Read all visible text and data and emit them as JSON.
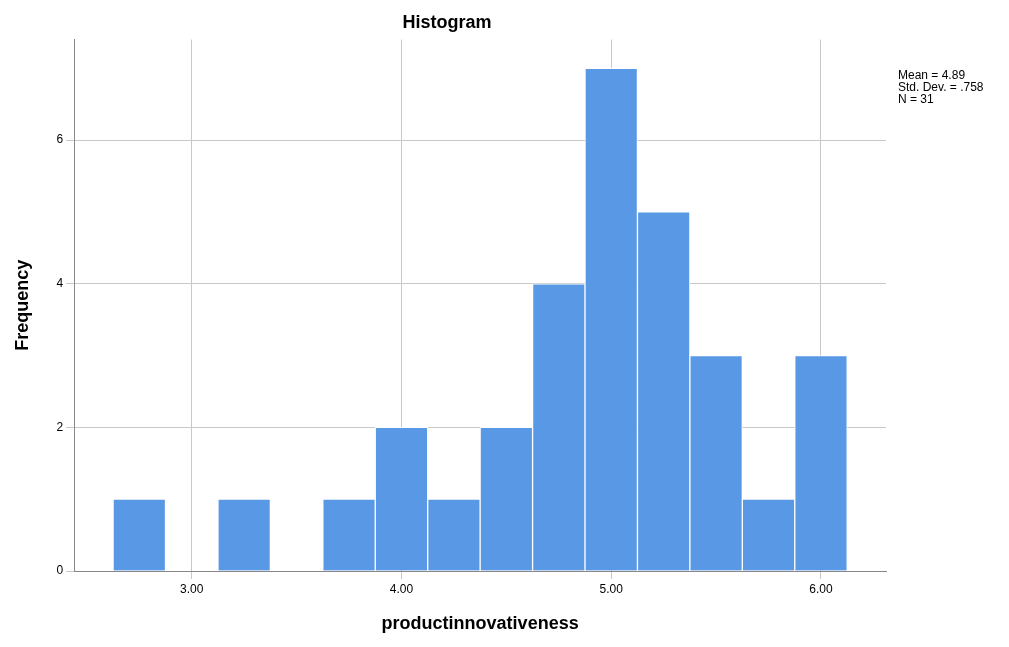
{
  "chart_data": {
    "type": "histogram",
    "title": "Histogram",
    "xlabel": "productinnovativeness",
    "ylabel": "Frequency",
    "bins": [
      2.625,
      2.875,
      3.125,
      3.375,
      3.625,
      3.875,
      4.125,
      4.375,
      4.625,
      4.875,
      5.125,
      5.375,
      5.625,
      5.875,
      6.125
    ],
    "values": [
      1,
      0,
      1,
      0,
      1,
      2,
      1,
      2,
      4,
      7,
      5,
      3,
      1,
      3
    ],
    "color": "#5898e4",
    "xlim": [
      2.44,
      6.31
    ],
    "ylim": [
      0,
      7.4
    ],
    "xticks": [
      {
        "value": 3,
        "label": "3.00"
      },
      {
        "value": 4,
        "label": "4.00"
      },
      {
        "value": 5,
        "label": "5.00"
      },
      {
        "value": 6,
        "label": "6.00"
      }
    ],
    "yticks": [
      0,
      2,
      4,
      6
    ],
    "grid": true,
    "annotations": [
      "Mean = 4.89",
      "Std. Dev. = .758",
      "N = 31"
    ]
  }
}
